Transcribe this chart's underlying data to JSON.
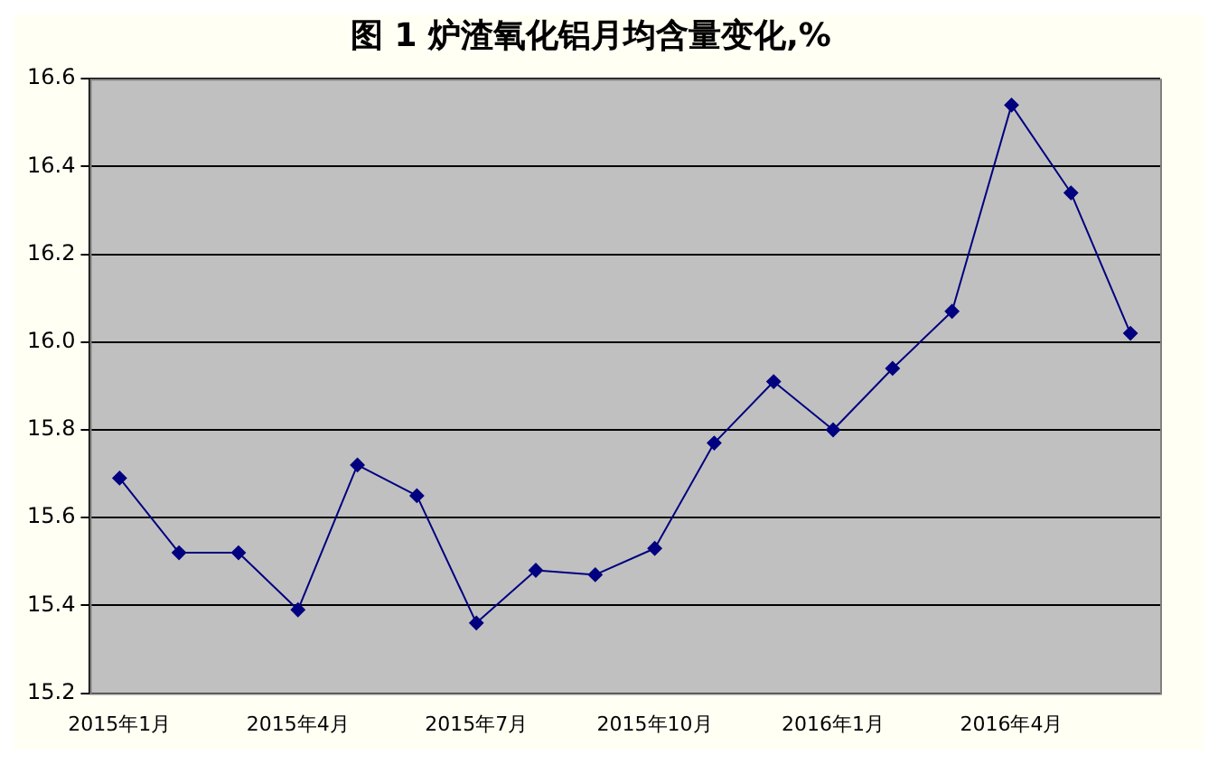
{
  "chart_data": {
    "type": "line",
    "title": "图 1 炉渣氧化铝月均含量变化,%",
    "categories": [
      "2015年1月",
      null,
      null,
      "2015年4月",
      null,
      null,
      "2015年7月",
      null,
      null,
      "2015年10月",
      null,
      null,
      "2016年1月",
      null,
      null,
      "2016年4月",
      null,
      null
    ],
    "series": [
      {
        "color": "#000080",
        "values": [
          15.69,
          15.52,
          15.52,
          15.39,
          15.72,
          15.65,
          15.36,
          15.48,
          15.47,
          15.53,
          15.77,
          15.91,
          15.8,
          15.94,
          16.07,
          16.54,
          16.34,
          16.02
        ]
      }
    ],
    "ylim": [
      15.2,
      16.6
    ],
    "yticks": [
      {
        "value": 15.2,
        "label": "15.2"
      },
      {
        "value": 15.4,
        "label": "15.4"
      },
      {
        "value": 15.6,
        "label": "15.6"
      },
      {
        "value": 15.8,
        "label": "15.8"
      },
      {
        "value": 16.0,
        "label": "16.0"
      },
      {
        "value": 16.2,
        "label": "16.2"
      },
      {
        "value": 16.4,
        "label": "16.4"
      },
      {
        "value": 16.6,
        "label": "16.6"
      }
    ],
    "grid": "y",
    "legend": false,
    "marker": "diamond",
    "line_style": "solid"
  }
}
